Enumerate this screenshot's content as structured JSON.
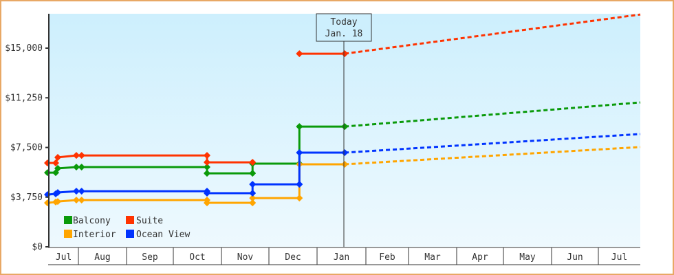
{
  "chart_data": {
    "type": "line",
    "title": "",
    "xlabel": "",
    "ylabel": "",
    "ylim": [
      0,
      17500
    ],
    "y_ticks": [
      {
        "value": 0,
        "label": "$0"
      },
      {
        "value": 3750,
        "label": "$3,750"
      },
      {
        "value": 7500,
        "label": "$7,500"
      },
      {
        "value": 11250,
        "label": "$11,250"
      },
      {
        "value": 15000,
        "label": "$15,000"
      }
    ],
    "x_months": [
      "Jul",
      "Aug",
      "Sep",
      "Oct",
      "Nov",
      "Dec",
      "Jan",
      "Feb",
      "Mar",
      "Apr",
      "May",
      "Jun",
      "Jul"
    ],
    "grid": false,
    "legend_position": "lower-left inside",
    "annotation": {
      "line1": "Today",
      "line2": "Jan. 18"
    },
    "series": [
      {
        "name": "Balcony",
        "color": "#0a9a0a",
        "history": [
          {
            "date": "Jul 1",
            "value": 5600
          },
          {
            "date": "Jul 5",
            "value": 5600
          },
          {
            "date": "Jul 6",
            "value": 5920
          },
          {
            "date": "Jul 15",
            "value": 6020
          },
          {
            "date": "Aug 3",
            "value": 6020
          },
          {
            "date": "Oct 22",
            "value": 6020
          },
          {
            "date": "Oct 22",
            "value": 5550
          },
          {
            "date": "Nov 20",
            "value": 5550
          },
          {
            "date": "Nov 20",
            "value": 6280
          },
          {
            "date": "Dec 20",
            "value": 6280
          },
          {
            "date": "Dec 20",
            "value": 9080
          },
          {
            "date": "Jan 18",
            "value": 9080
          }
        ],
        "forecast": [
          {
            "date": "Jan 18",
            "value": 9080
          },
          {
            "date": "Jul 31",
            "value": 10900
          }
        ]
      },
      {
        "name": "Suite",
        "color": "#ff3300",
        "history": [
          {
            "date": "Jul 1",
            "value": 6330
          },
          {
            "date": "Jul 5",
            "value": 6330
          },
          {
            "date": "Jul 6",
            "value": 6750
          },
          {
            "date": "Jul 15",
            "value": 6900
          },
          {
            "date": "Aug 3",
            "value": 6900
          },
          {
            "date": "Oct 22",
            "value": 6900
          },
          {
            "date": "Oct 22",
            "value": 6380
          },
          {
            "date": "Nov 20",
            "value": 6380
          }
        ],
        "history_2": [
          {
            "date": "Dec 20",
            "value": 14580
          },
          {
            "date": "Jan 18",
            "value": 14580
          }
        ],
        "forecast": [
          {
            "date": "Jan 18",
            "value": 14580
          },
          {
            "date": "Jul 31",
            "value": 17540
          }
        ]
      },
      {
        "name": "Interior",
        "color": "#ffa500",
        "history": [
          {
            "date": "Jul 1",
            "value": 3320
          },
          {
            "date": "Jul 5",
            "value": 3380
          },
          {
            "date": "Jul 6",
            "value": 3420
          },
          {
            "date": "Jul 15",
            "value": 3530
          },
          {
            "date": "Aug 3",
            "value": 3530
          },
          {
            "date": "Oct 22",
            "value": 3530
          },
          {
            "date": "Oct 22",
            "value": 3320
          },
          {
            "date": "Nov 20",
            "value": 3320
          },
          {
            "date": "Nov 20",
            "value": 3680
          },
          {
            "date": "Dec 20",
            "value": 3680
          },
          {
            "date": "Dec 20",
            "value": 6230
          },
          {
            "date": "Jan 18",
            "value": 6230
          }
        ],
        "forecast": [
          {
            "date": "Jan 18",
            "value": 6230
          },
          {
            "date": "Jul 31",
            "value": 7530
          }
        ]
      },
      {
        "name": "Ocean View",
        "color": "#0033ff",
        "history": [
          {
            "date": "Jul 1",
            "value": 3940
          },
          {
            "date": "Jul 5",
            "value": 4000
          },
          {
            "date": "Jul 6",
            "value": 4100
          },
          {
            "date": "Jul 15",
            "value": 4200
          },
          {
            "date": "Aug 3",
            "value": 4200
          },
          {
            "date": "Oct 22",
            "value": 4200
          },
          {
            "date": "Oct 22",
            "value": 4050
          },
          {
            "date": "Nov 20",
            "value": 4050
          },
          {
            "date": "Nov 20",
            "value": 4720
          },
          {
            "date": "Dec 20",
            "value": 4720
          },
          {
            "date": "Dec 20",
            "value": 7110
          },
          {
            "date": "Jan 18",
            "value": 7110
          }
        ],
        "forecast": [
          {
            "date": "Jan 18",
            "value": 7110
          },
          {
            "date": "Jul 31",
            "value": 8510
          }
        ]
      }
    ]
  },
  "legend": {
    "items": [
      {
        "label": "Balcony",
        "color": "#0a9a0a"
      },
      {
        "label": "Suite",
        "color": "#ff3300"
      },
      {
        "label": "Interior",
        "color": "#ffa500"
      },
      {
        "label": "Ocean View",
        "color": "#0033ff"
      }
    ]
  },
  "colors": {
    "frame_border": "#e8a865",
    "plot_bg_top": "#cdeffd",
    "plot_bg_bottom": "#ebf8fe",
    "axis": "#333333"
  }
}
